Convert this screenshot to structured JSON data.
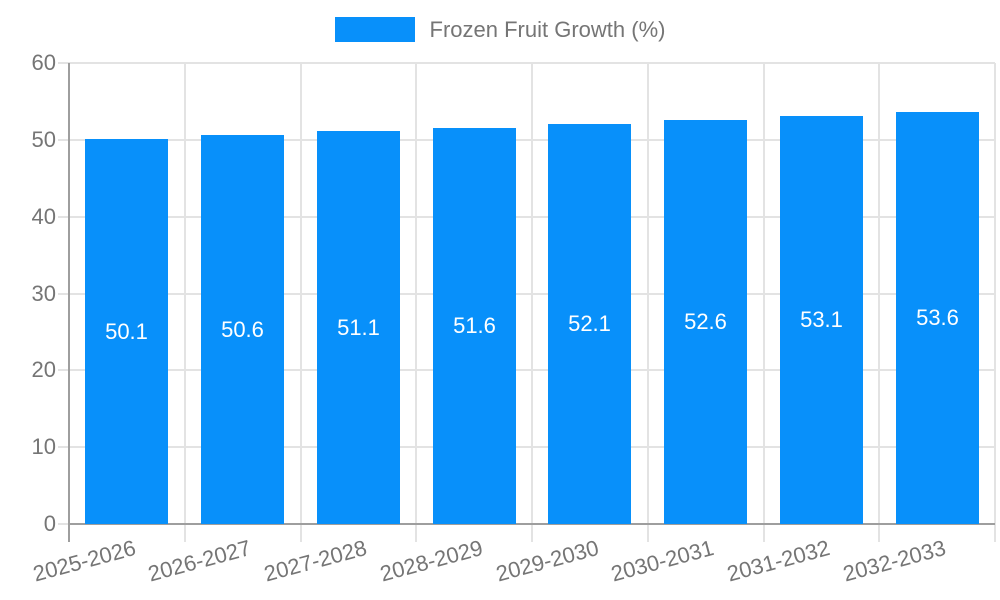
{
  "legend": {
    "label": "Frozen Fruit Growth (%)",
    "swatch_color": "#0890fa"
  },
  "colors": {
    "bar": "#0890fa",
    "grid": "#e3e3e3",
    "axis": "#9e9e9e",
    "tick_text": "#757575",
    "bar_label_text": "#ffffff",
    "background": "#ffffff"
  },
  "chart_data": {
    "type": "bar",
    "title": "",
    "legend_entries": [
      "Frozen Fruit Growth (%)"
    ],
    "legend_position": "top",
    "categories": [
      "2025-2026",
      "2026-2027",
      "2027-2028",
      "2028-2029",
      "2029-2030",
      "2030-2031",
      "2031-2032",
      "2032-2033"
    ],
    "series": [
      {
        "name": "Frozen Fruit Growth (%)",
        "values": [
          50.1,
          50.6,
          51.1,
          51.6,
          52.1,
          52.6,
          53.1,
          53.6
        ]
      }
    ],
    "bar_value_labels": [
      "50.1",
      "50.6",
      "51.1",
      "51.6",
      "52.1",
      "52.6",
      "53.1",
      "53.6"
    ],
    "xlabel": "",
    "ylabel": "",
    "ylim": [
      0,
      60
    ],
    "yticks": [
      0,
      10,
      20,
      30,
      40,
      50,
      60
    ],
    "grid": "on",
    "x_tick_label_rotation_deg": -15
  }
}
